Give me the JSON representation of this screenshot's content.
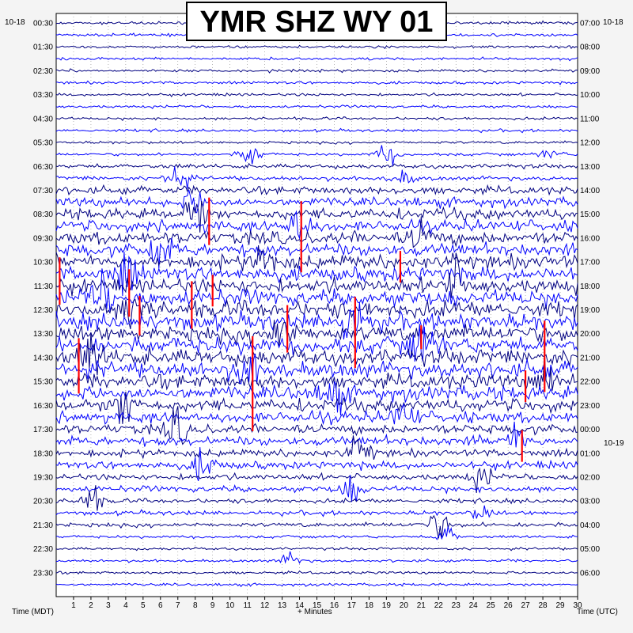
{
  "chart_data": {
    "type": "line",
    "title": "YMR SHZ WY 01",
    "date_left": "10-18",
    "date_right": "10-18",
    "date_change_label": "10-19",
    "xlabel": "+ Minutes",
    "left_axis_label": "Time (MDT)",
    "right_axis_label": "Time (UTC)",
    "x_range": [
      0,
      30
    ],
    "x_tick_labels": [
      "1",
      "2",
      "3",
      "4",
      "5",
      "6",
      "7",
      "8",
      "9",
      "10",
      "11",
      "12",
      "13",
      "14",
      "15",
      "16",
      "17",
      "18",
      "19",
      "20",
      "21",
      "22",
      "23",
      "24",
      "25",
      "26",
      "27",
      "28",
      "29",
      "30"
    ],
    "left_time_labels": [
      "00:30",
      "01:30",
      "02:30",
      "03:30",
      "04:30",
      "05:30",
      "06:30",
      "07:30",
      "08:30",
      "09:30",
      "10:30",
      "11:30",
      "12:30",
      "13:30",
      "14:30",
      "15:30",
      "16:30",
      "17:30",
      "18:30",
      "19:30",
      "20:30",
      "21:30",
      "22:30",
      "23:30"
    ],
    "right_time_labels": [
      "07:00",
      "08:00",
      "09:00",
      "10:00",
      "11:00",
      "12:00",
      "13:00",
      "14:00",
      "15:00",
      "16:00",
      "17:00",
      "18:00",
      "19:00",
      "20:00",
      "21:00",
      "22:00",
      "23:00",
      "00:00",
      "01:00",
      "02:00",
      "03:00",
      "04:00",
      "05:00",
      "06:00"
    ],
    "rows": 48,
    "minutes_per_row": 30,
    "trace_colors": [
      "#000080",
      "#0000ff"
    ],
    "clip_color": "#ff0000",
    "grid": true,
    "activity_levels": [
      1,
      1,
      1,
      1,
      1,
      1,
      1,
      1,
      1,
      1,
      1,
      1,
      2,
      2,
      4,
      5,
      6,
      6,
      7,
      7,
      8,
      8,
      8,
      9,
      9,
      9,
      9,
      9,
      9,
      9,
      8,
      8,
      7,
      6,
      5,
      5,
      4,
      4,
      3,
      3,
      2,
      2,
      2,
      1,
      1,
      1,
      1,
      1
    ],
    "events": [
      {
        "row": 11,
        "minute": 11.2,
        "amplitude": 22
      },
      {
        "row": 11,
        "minute": 19.0,
        "amplitude": 18
      },
      {
        "row": 11,
        "minute": 28.5,
        "amplitude": 10
      },
      {
        "row": 13,
        "minute": 7.0,
        "amplitude": 30
      },
      {
        "row": 13,
        "minute": 20.0,
        "amplitude": 14
      },
      {
        "row": 15,
        "minute": 8.0,
        "amplitude": 26
      },
      {
        "row": 16,
        "minute": 8.0,
        "amplitude": 40
      },
      {
        "row": 17,
        "minute": 14.0,
        "amplitude": 35
      },
      {
        "row": 18,
        "minute": 21.0,
        "amplitude": 28
      },
      {
        "row": 19,
        "minute": 6.0,
        "amplitude": 30
      },
      {
        "row": 20,
        "minute": 12.0,
        "amplitude": 30
      },
      {
        "row": 21,
        "minute": 4.0,
        "amplitude": 45
      },
      {
        "row": 22,
        "minute": 23.0,
        "amplitude": 40
      },
      {
        "row": 23,
        "minute": 2.5,
        "amplitude": 45
      },
      {
        "row": 24,
        "minute": 4.5,
        "amplitude": 50
      },
      {
        "row": 25,
        "minute": 17.0,
        "amplitude": 45
      },
      {
        "row": 26,
        "minute": 13.0,
        "amplitude": 40
      },
      {
        "row": 27,
        "minute": 21.0,
        "amplitude": 38
      },
      {
        "row": 28,
        "minute": 2.0,
        "amplitude": 40
      },
      {
        "row": 29,
        "minute": 11.0,
        "amplitude": 40
      },
      {
        "row": 30,
        "minute": 28.0,
        "amplitude": 40
      },
      {
        "row": 31,
        "minute": 16.0,
        "amplitude": 30
      },
      {
        "row": 32,
        "minute": 4.0,
        "amplitude": 40
      },
      {
        "row": 33,
        "minute": 20.0,
        "amplitude": 30
      },
      {
        "row": 34,
        "minute": 7.0,
        "amplitude": 35
      },
      {
        "row": 35,
        "minute": 26.5,
        "amplitude": 28
      },
      {
        "row": 36,
        "minute": 17.5,
        "amplitude": 30
      },
      {
        "row": 37,
        "minute": 8.5,
        "amplitude": 28
      },
      {
        "row": 38,
        "minute": 24.5,
        "amplitude": 24
      },
      {
        "row": 39,
        "minute": 17.0,
        "amplitude": 26
      },
      {
        "row": 40,
        "minute": 2.0,
        "amplitude": 24
      },
      {
        "row": 41,
        "minute": 24.5,
        "amplitude": 12
      },
      {
        "row": 42,
        "minute": 22.0,
        "amplitude": 28
      },
      {
        "row": 43,
        "minute": 22.5,
        "amplitude": 20
      },
      {
        "row": 45,
        "minute": 13.5,
        "amplitude": 14
      }
    ],
    "clipped_spikes": [
      {
        "row": 16,
        "minute": 8.8,
        "length": 60
      },
      {
        "row": 17,
        "minute": 14.1,
        "length": 90
      },
      {
        "row": 20,
        "minute": 19.8,
        "length": 40
      },
      {
        "row": 21,
        "minute": 0.2,
        "length": 60
      },
      {
        "row": 22,
        "minute": 4.2,
        "length": 60
      },
      {
        "row": 22,
        "minute": 9.0,
        "length": 40
      },
      {
        "row": 23,
        "minute": 7.8,
        "length": 60
      },
      {
        "row": 24,
        "minute": 4.8,
        "length": 50
      },
      {
        "row": 25,
        "minute": 17.2,
        "length": 90
      },
      {
        "row": 25,
        "minute": 13.3,
        "length": 60
      },
      {
        "row": 26,
        "minute": 21.0,
        "length": 30
      },
      {
        "row": 27,
        "minute": 28.1,
        "length": 90
      },
      {
        "row": 28,
        "minute": 1.3,
        "length": 70
      },
      {
        "row": 29,
        "minute": 11.3,
        "length": 120
      },
      {
        "row": 30,
        "minute": 27.0,
        "length": 40
      },
      {
        "row": 35,
        "minute": 26.8,
        "length": 40
      }
    ]
  }
}
